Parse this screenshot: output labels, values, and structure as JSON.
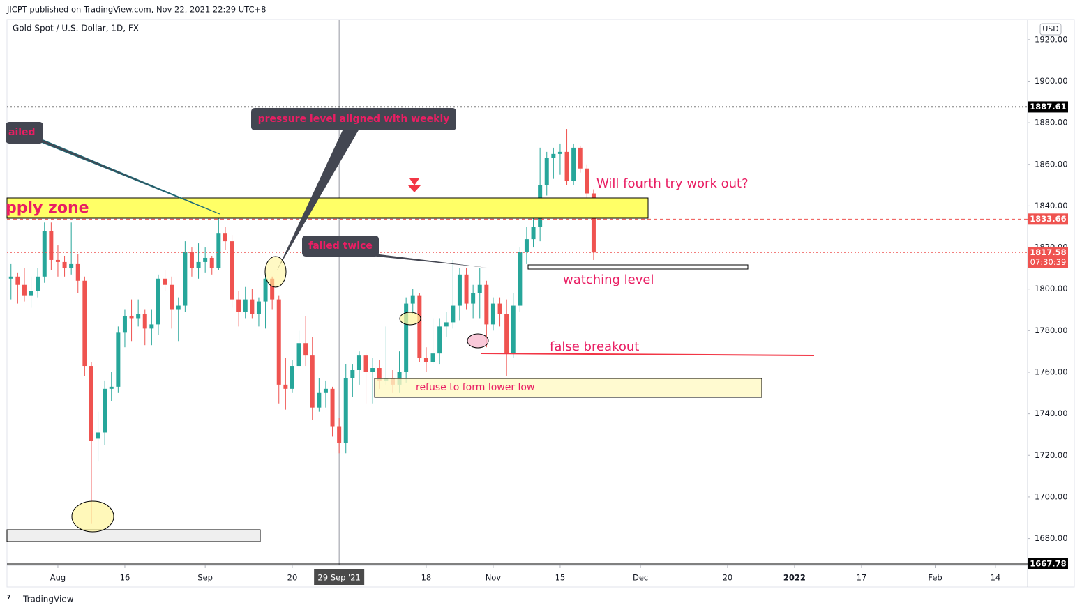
{
  "header": "JICPT published on TradingView.com, Nov 22, 2021 22:29 UTC+8",
  "footer": "TradingView",
  "chart_data": {
    "type": "candlestick",
    "title": "Gold Spot / U.S. Dollar, 1D, FX",
    "currency": "USD",
    "up_color": "#26a69a",
    "down_color": "#ef5350",
    "open": [
      1805,
      1806,
      1802,
      1797,
      1799,
      1806,
      1828,
      1814,
      1813,
      1810,
      1812,
      1804,
      1763,
      1728,
      1731,
      1752,
      1753,
      1779,
      1787,
      1786,
      1788,
      1781,
      1783,
      1805,
      1802,
      1790,
      1792,
      1818,
      1810,
      1813,
      1815,
      1810,
      1827,
      1823,
      1795,
      1789,
      1795,
      1788,
      1794,
      1805,
      1795,
      1754,
      1752,
      1763,
      1774,
      1768,
      1743,
      1750,
      1752,
      1734,
      1726,
      1757,
      1761,
      1768,
      1760,
      1762,
      1756,
      1757,
      1754,
      1760,
      1793,
      1797,
      1767,
      1765,
      1769,
      1782,
      1784,
      1792,
      1807,
      1793,
      1798,
      1802,
      1783,
      1793,
      1788,
      1769,
      1792,
      1818,
      1824,
      1830,
      1850,
      1863,
      1865,
      1866,
      1852,
      1868,
      1858,
      1846
    ],
    "high": [
      1812,
      1808,
      1810,
      1806,
      1810,
      1832,
      1832,
      1821,
      1816,
      1832,
      1817,
      1806,
      1765,
      1741,
      1756,
      1760,
      1782,
      1790,
      1795,
      1795,
      1790,
      1790,
      1807,
      1809,
      1806,
      1796,
      1823,
      1820,
      1822,
      1820,
      1816,
      1834,
      1830,
      1826,
      1799,
      1801,
      1800,
      1796,
      1808,
      1806,
      1797,
      1767,
      1766,
      1780,
      1787,
      1777,
      1757,
      1756,
      1753,
      1738,
      1764,
      1764,
      1770,
      1769,
      1767,
      1766,
      1782,
      1761,
      1770,
      1796,
      1800,
      1798,
      1772,
      1786,
      1786,
      1789,
      1814,
      1810,
      1810,
      1802,
      1810,
      1804,
      1796,
      1796,
      1795,
      1798,
      1820,
      1830,
      1834,
      1868,
      1866,
      1868,
      1870,
      1877,
      1870,
      1869,
      1860,
      1848
    ],
    "low": [
      1795,
      1793,
      1794,
      1791,
      1796,
      1803,
      1809,
      1806,
      1806,
      1807,
      1798,
      1758,
      1687,
      1717,
      1725,
      1746,
      1750,
      1772,
      1775,
      1782,
      1773,
      1773,
      1778,
      1799,
      1781,
      1775,
      1789,
      1806,
      1805,
      1808,
      1807,
      1809,
      1819,
      1791,
      1782,
      1786,
      1786,
      1782,
      1781,
      1790,
      1745,
      1742,
      1750,
      1764,
      1763,
      1737,
      1741,
      1743,
      1729,
      1721,
      1721,
      1748,
      1754,
      1745,
      1745,
      1752,
      1754,
      1750,
      1750,
      1755,
      1788,
      1765,
      1760,
      1764,
      1764,
      1777,
      1781,
      1785,
      1790,
      1786,
      1786,
      1772,
      1780,
      1782,
      1758,
      1767,
      1789,
      1812,
      1820,
      1823,
      1845,
      1853,
      1855,
      1850,
      1850,
      1856,
      1843,
      1814
    ],
    "close": [
      1806,
      1802,
      1797,
      1799,
      1806,
      1828,
      1814,
      1813,
      1810,
      1812,
      1804,
      1763,
      1727,
      1731,
      1752,
      1753,
      1779,
      1787,
      1786,
      1788,
      1781,
      1783,
      1805,
      1802,
      1790,
      1792,
      1818,
      1810,
      1813,
      1815,
      1810,
      1827,
      1823,
      1795,
      1789,
      1795,
      1788,
      1794,
      1805,
      1795,
      1754,
      1752,
      1763,
      1774,
      1768,
      1743,
      1750,
      1752,
      1734,
      1726,
      1757,
      1761,
      1768,
      1760,
      1762,
      1756,
      1757,
      1754,
      1760,
      1793,
      1797,
      1767,
      1765,
      1769,
      1782,
      1784,
      1792,
      1807,
      1793,
      1798,
      1802,
      1783,
      1793,
      1788,
      1769,
      1792,
      1818,
      1824,
      1830,
      1850,
      1863,
      1865,
      1866,
      1852,
      1868,
      1858,
      1846,
      1817.58
    ],
    "xlim": [
      -0.6,
      151.8
    ],
    "xticks": [
      {
        "value": 7,
        "label": "Aug"
      },
      {
        "value": 17,
        "label": "16"
      },
      {
        "value": 29,
        "label": "Sep"
      },
      {
        "value": 42,
        "label": "20"
      },
      {
        "value": 62,
        "label": "18"
      },
      {
        "value": 72,
        "label": "Nov"
      },
      {
        "value": 82,
        "label": "15"
      },
      {
        "value": 94,
        "label": "Dec"
      },
      {
        "value": 107,
        "label": "20"
      },
      {
        "value": 117,
        "label": "2022"
      },
      {
        "value": 127,
        "label": "17"
      },
      {
        "value": 138,
        "label": "Feb"
      },
      {
        "value": 147,
        "label": "14"
      }
    ],
    "crosshair": {
      "value": 49,
      "label": "29 Sep '21"
    },
    "ylim": [
      1667.78,
      1929
    ],
    "yticks": [
      {
        "value": 1680,
        "label": "1680.00"
      },
      {
        "value": 1700,
        "label": "1700.00"
      },
      {
        "value": 1720,
        "label": "1720.00"
      },
      {
        "value": 1740,
        "label": "1740.00"
      },
      {
        "value": 1760,
        "label": "1760.00"
      },
      {
        "value": 1780,
        "label": "1780.00"
      },
      {
        "value": 1800,
        "label": "1800.00"
      },
      {
        "value": 1820,
        "label": "1820.00"
      },
      {
        "value": 1840,
        "label": "1840.00"
      },
      {
        "value": 1860,
        "label": "1860.00"
      },
      {
        "value": 1880,
        "label": "1880.00"
      },
      {
        "value": 1900,
        "label": "1900.00"
      },
      {
        "value": 1920,
        "label": "1920.00"
      }
    ],
    "price_lines": [
      {
        "value": 1887.61,
        "color": "#000000",
        "style": "dotted"
      },
      {
        "value": 1833.66,
        "color": "#ef5350",
        "style": "dashed"
      },
      {
        "value": 1817.58,
        "color": "#ef5350",
        "style": "dotted",
        "countdown": "07:30:39"
      },
      {
        "value": 1667.78,
        "color": "#000000",
        "style": "solid"
      }
    ],
    "annotations": {
      "failed": "ailed",
      "pressure": "pressure level aligned with weekly",
      "failed_twice": "failed twice",
      "supply_zone": "pply zone",
      "fourth_try": "Will fourth try work out?",
      "watching": "watching level",
      "false_breakout": "false breakout",
      "refuse": "refuse to form lower low"
    }
  }
}
